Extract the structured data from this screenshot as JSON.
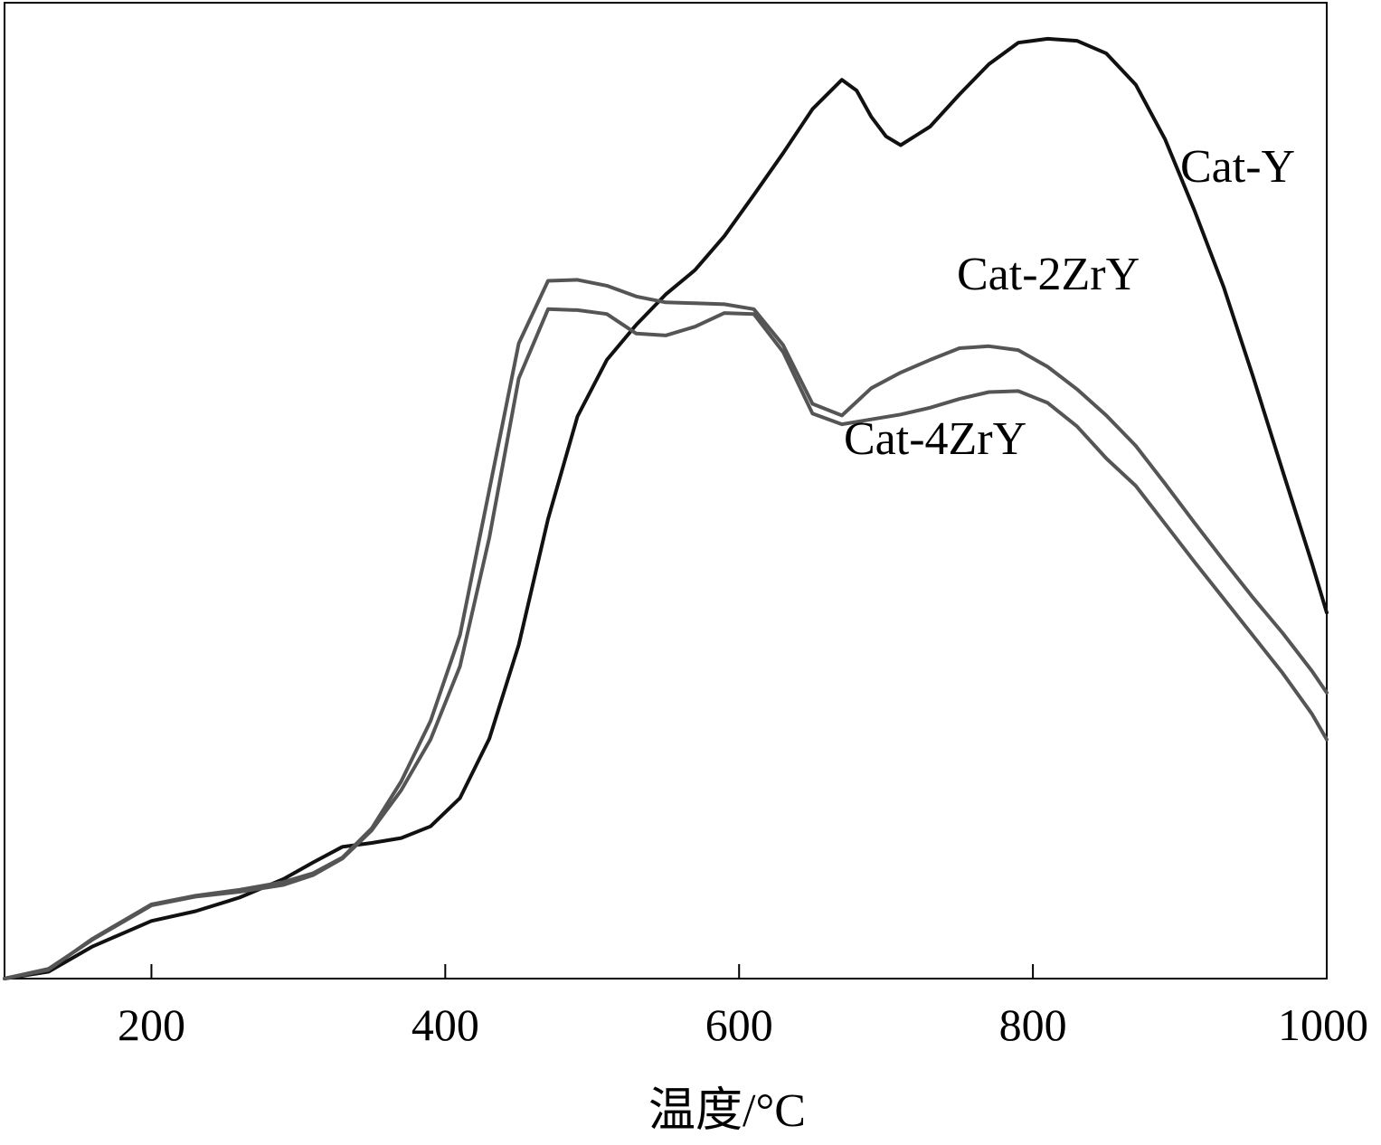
{
  "chart_data": {
    "type": "line",
    "title": "",
    "xlabel": "温度/°C",
    "ylabel": "",
    "xlim": [
      100,
      1000
    ],
    "ylim": [
      0,
      100
    ],
    "xticks": [
      200,
      400,
      600,
      800,
      1000
    ],
    "grid": false,
    "legend": "inline labels",
    "series": [
      {
        "name": "Cat-Y",
        "color": "#111111",
        "x": [
          100,
          130,
          160,
          200,
          230,
          260,
          290,
          310,
          330,
          350,
          370,
          390,
          410,
          430,
          450,
          470,
          490,
          510,
          530,
          550,
          570,
          590,
          610,
          630,
          650,
          670,
          680,
          690,
          700,
          710,
          730,
          750,
          770,
          790,
          810,
          830,
          850,
          870,
          890,
          910,
          930,
          950,
          970,
          990,
          1000
        ],
        "y": [
          0,
          0.7,
          3.3,
          5.9,
          6.9,
          8.3,
          10.2,
          11.9,
          13.5,
          13.9,
          14.4,
          15.6,
          18.5,
          24.6,
          34.2,
          47.1,
          57.6,
          63.4,
          67.0,
          70.1,
          72.6,
          76.1,
          80.3,
          84.6,
          89.1,
          92.1,
          91.0,
          88.3,
          86.3,
          85.4,
          87.3,
          90.6,
          93.7,
          95.9,
          96.3,
          96.1,
          94.8,
          91.6,
          86.0,
          78.7,
          70.8,
          61.6,
          52.0,
          42.5,
          37.5
        ]
      },
      {
        "name": "Cat-2ZrY",
        "color": "#555555",
        "x": [
          100,
          130,
          160,
          200,
          230,
          260,
          290,
          310,
          330,
          350,
          370,
          390,
          410,
          430,
          450,
          470,
          490,
          510,
          530,
          550,
          570,
          590,
          610,
          630,
          650,
          670,
          690,
          710,
          730,
          750,
          770,
          790,
          810,
          830,
          850,
          870,
          890,
          910,
          930,
          950,
          970,
          990,
          1000
        ],
        "y": [
          0,
          0.9,
          4.1,
          7.6,
          8.5,
          9.1,
          9.9,
          10.8,
          12.4,
          15.4,
          20.2,
          26.4,
          35.2,
          50.1,
          65.1,
          71.5,
          71.6,
          71.0,
          69.9,
          69.3,
          69.2,
          69.1,
          68.6,
          64.9,
          58.9,
          57.7,
          60.5,
          62.1,
          63.4,
          64.6,
          64.8,
          64.4,
          62.7,
          60.4,
          57.7,
          54.6,
          50.7,
          46.7,
          42.8,
          39.0,
          35.4,
          31.5,
          29.3
        ]
      },
      {
        "name": "Cat-4ZrY",
        "color": "#555555",
        "x": [
          100,
          130,
          160,
          200,
          230,
          260,
          290,
          310,
          330,
          350,
          370,
          390,
          410,
          430,
          450,
          470,
          490,
          510,
          530,
          550,
          570,
          590,
          610,
          630,
          650,
          670,
          690,
          710,
          730,
          750,
          770,
          790,
          810,
          830,
          850,
          870,
          890,
          910,
          930,
          950,
          970,
          990,
          1000
        ],
        "y": [
          0,
          1.0,
          4.0,
          7.5,
          8.4,
          8.9,
          9.6,
          10.6,
          12.3,
          15.2,
          19.3,
          24.5,
          32.0,
          45.2,
          61.5,
          68.6,
          68.5,
          68.1,
          66.1,
          65.9,
          66.8,
          68.2,
          68.1,
          64.2,
          57.9,
          56.8,
          57.3,
          57.8,
          58.5,
          59.4,
          60.1,
          60.2,
          59.0,
          56.6,
          53.3,
          50.5,
          46.6,
          42.7,
          38.9,
          35.1,
          31.3,
          27.1,
          24.5
        ]
      }
    ]
  }
}
